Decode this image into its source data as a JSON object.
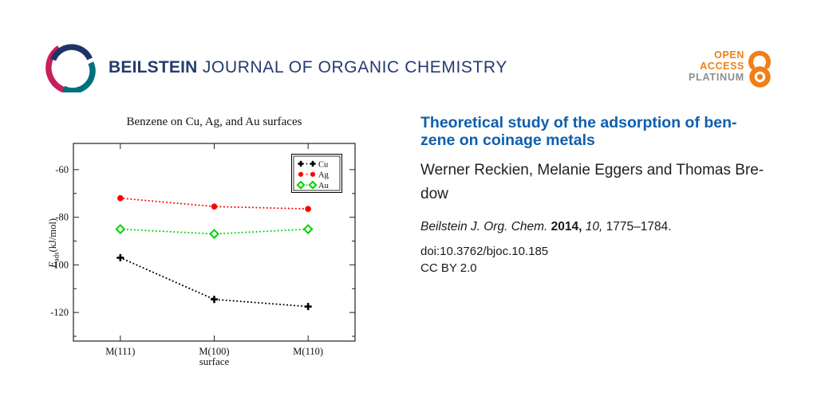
{
  "header": {
    "brand_bold": "BEILSTEIN",
    "brand_rest": " JOURNAL OF ORGANIC CHEMISTRY",
    "brand_color": "#253a6e",
    "logo_colors": {
      "navy": "#1e3467",
      "teal": "#00707d",
      "pink": "#c81e5b"
    },
    "badge": {
      "open": "OPEN",
      "access": "ACCESS",
      "platinum": "PLATINUM",
      "orange": "#ef8018",
      "gray": "#8d8d8d"
    }
  },
  "article": {
    "title_lines": [
      "Theoretical study of the adsorption of ben-",
      "zene on coinage metals"
    ],
    "title_color": "#0f5fac",
    "author_lines": [
      "Werner Reckien, Melanie Eggers and Thomas Bre-",
      "dow"
    ],
    "citation": {
      "journal": "Beilstein J. Org. Chem. ",
      "year": "2014, ",
      "volume": "10, ",
      "pages": "1775–1784."
    },
    "doi": "doi:10.3762/bjoc.10.185",
    "license": "CC BY 2.0"
  },
  "chart_data": {
    "type": "line",
    "title": "Benzene on Cu, Ag, and Au surfaces",
    "xlabel": "surface",
    "ylabel": "E_ads (kJ/mol)",
    "ylabel_main": "E",
    "ylabel_sub": "ads",
    "ylabel_unit": "(kJ/mol)",
    "categories": [
      "M(111)",
      "M(100)",
      "M(110)"
    ],
    "series": [
      {
        "name": "Cu",
        "marker": "plus",
        "color": "#000000",
        "values": [
          -97,
          -114.5,
          -117.5
        ]
      },
      {
        "name": "Ag",
        "marker": "circle",
        "color": "#ff0000",
        "values": [
          -72,
          -75.5,
          -76.5
        ]
      },
      {
        "name": "Au",
        "marker": "diamond",
        "color": "#00d200",
        "values": [
          -85,
          -87,
          -85
        ]
      }
    ],
    "ylim": [
      -132,
      -49
    ],
    "yticks": [
      -60,
      -80,
      -100,
      -120
    ],
    "yticks_minor": [
      -70,
      -90,
      -110,
      -130
    ],
    "line_style": "dotted",
    "grid": false,
    "legend_position": "top-right"
  }
}
